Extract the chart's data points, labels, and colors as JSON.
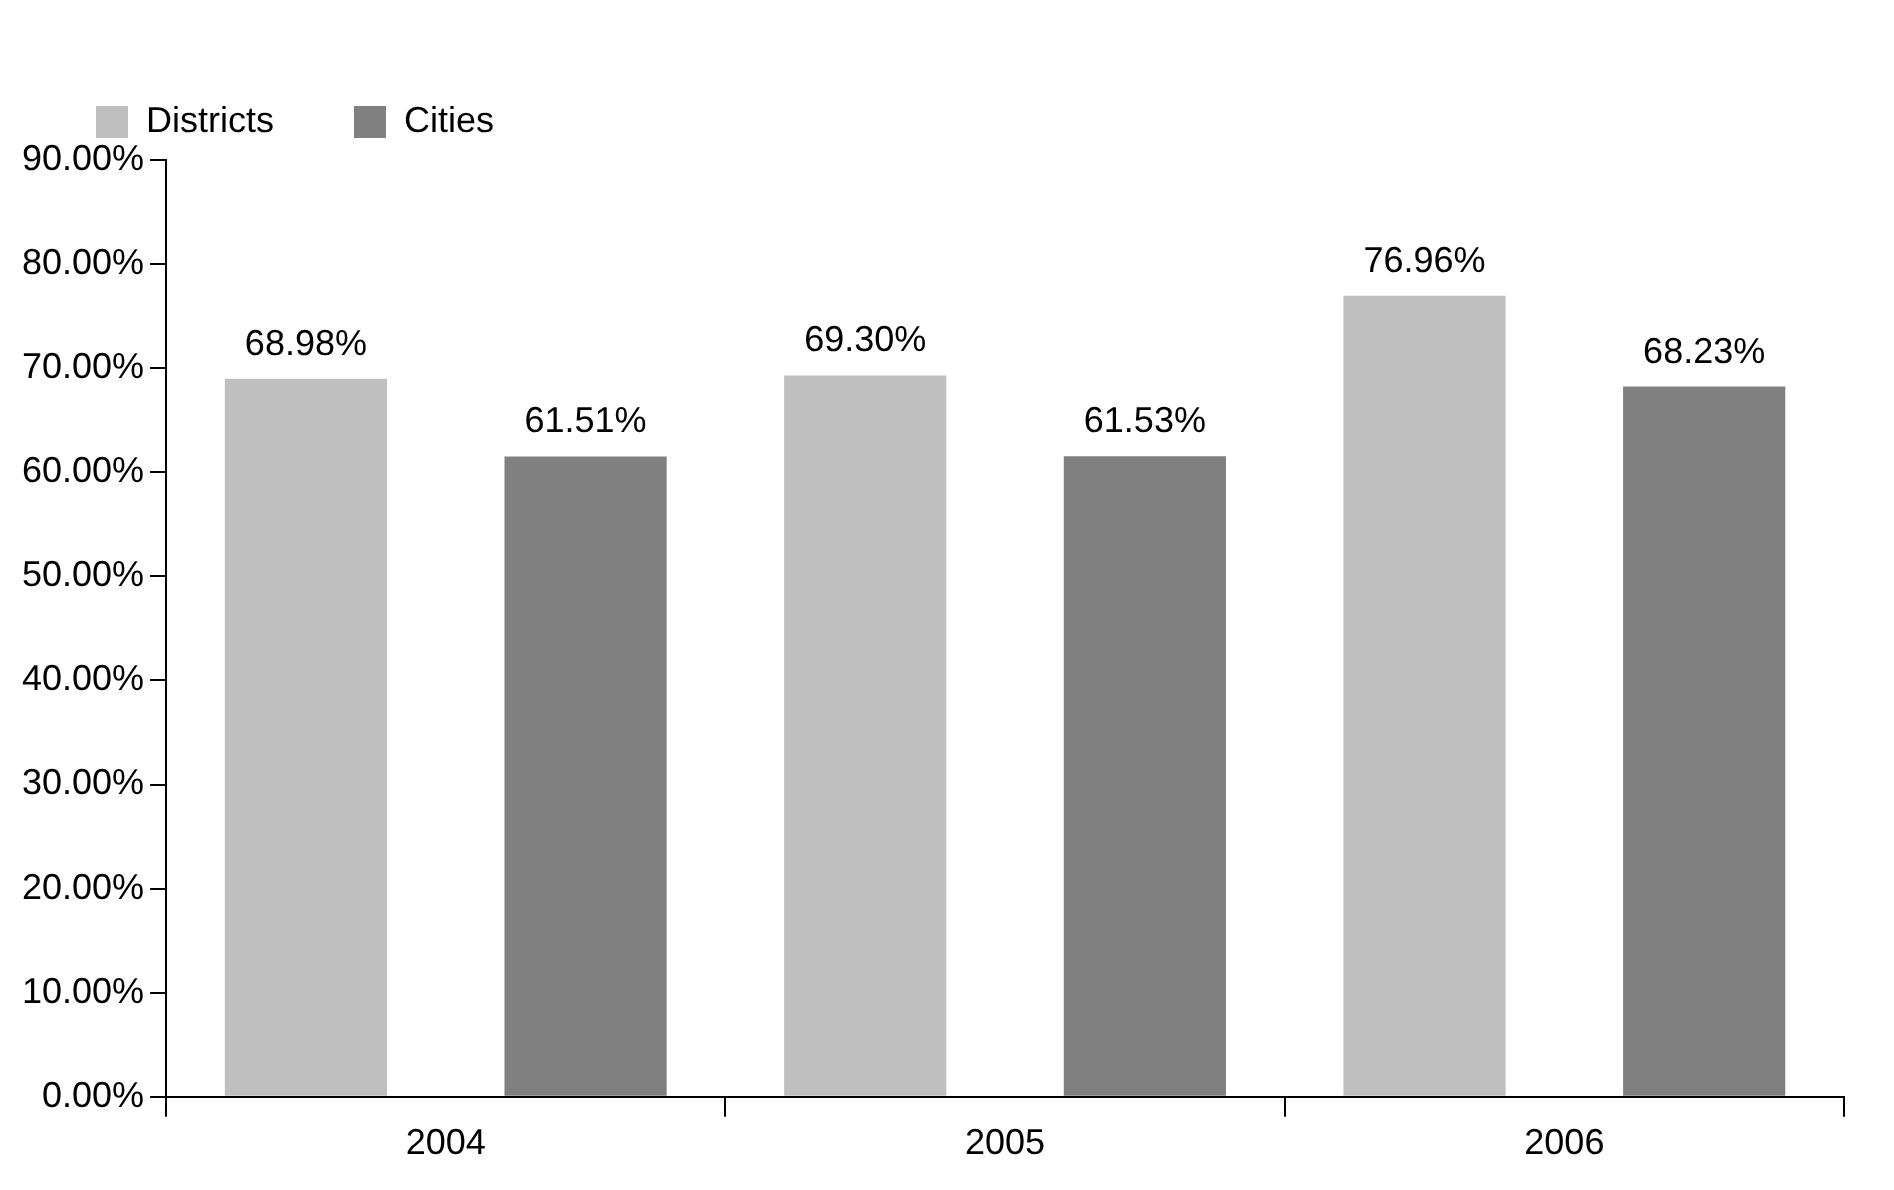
{
  "chart_data": {
    "type": "bar",
    "categories": [
      "2004",
      "2005",
      "2006"
    ],
    "series": [
      {
        "name": "Districts",
        "color": "#bfbfbf",
        "values": [
          68.98,
          69.3,
          76.96
        ],
        "value_labels": [
          "68.98%",
          "69.30%",
          "76.96%"
        ]
      },
      {
        "name": "Cities",
        "color": "#808080",
        "values": [
          61.51,
          61.53,
          68.23
        ],
        "value_labels": [
          "61.51%",
          "61.53%",
          "68.23%"
        ]
      }
    ],
    "ylim": [
      0,
      90
    ],
    "yticks": [
      {
        "value": 0,
        "label": "0.00%"
      },
      {
        "value": 10,
        "label": "10.00%"
      },
      {
        "value": 20,
        "label": "20.00%"
      },
      {
        "value": 30,
        "label": "30.00%"
      },
      {
        "value": 40,
        "label": "40.00%"
      },
      {
        "value": 50,
        "label": "50.00%"
      },
      {
        "value": 60,
        "label": "60.00%"
      },
      {
        "value": 70,
        "label": "70.00%"
      },
      {
        "value": 80,
        "label": "80.00%"
      },
      {
        "value": 90,
        "label": "90.00%"
      }
    ],
    "grid": false,
    "legend": "top left"
  }
}
